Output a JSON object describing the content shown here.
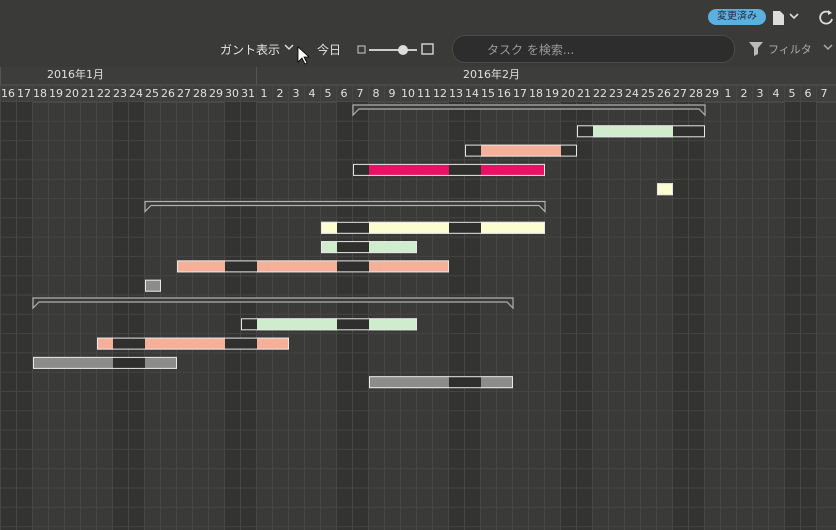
{
  "toolbar": {
    "status_badge": "変更済み",
    "view_menu": "ガント表示",
    "today_button": "今日",
    "search_placeholder": "タスク を検索...",
    "filter_button": "フィルタ"
  },
  "timeline": {
    "months": [
      {
        "label": "2016年1月",
        "from": 0
      },
      {
        "label": "2016年2月",
        "from": 16
      }
    ],
    "days": [
      "16",
      "17",
      "18",
      "19",
      "20",
      "21",
      "22",
      "23",
      "24",
      "25",
      "26",
      "27",
      "28",
      "29",
      "30",
      "31",
      "1",
      "2",
      "3",
      "4",
      "5",
      "6",
      "7",
      "8",
      "9",
      "10",
      "11",
      "12",
      "13",
      "14",
      "15",
      "16",
      "17",
      "18",
      "19",
      "20",
      "21",
      "22",
      "23",
      "24",
      "25",
      "26",
      "27",
      "28",
      "29",
      "1",
      "2",
      "3",
      "4",
      "5",
      "6",
      "7"
    ],
    "tasks": [
      {
        "kind": "summary",
        "from": 22,
        "to": 43
      },
      {
        "kind": "task",
        "from": 36,
        "to": 43,
        "color": "#cfeccd"
      },
      {
        "kind": "task",
        "from": 29,
        "to": 35,
        "color": "#f7b098"
      },
      {
        "kind": "task",
        "from": 22,
        "to": 33,
        "color": "#ec0f63"
      },
      {
        "kind": "task",
        "from": 41,
        "to": 41,
        "color": "#fdfdd2"
      },
      {
        "kind": "summary",
        "from": 9,
        "to": 33
      },
      {
        "kind": "task",
        "from": 20,
        "to": 33,
        "color": "#fdfdd2"
      },
      {
        "kind": "task",
        "from": 20,
        "to": 25,
        "color": "#cfeccd"
      },
      {
        "kind": "task",
        "from": 11,
        "to": 27,
        "color": "#f7b098"
      },
      {
        "kind": "task",
        "from": 9,
        "to": 9,
        "color": "#8c8c8c"
      },
      {
        "kind": "summary",
        "from": 2,
        "to": 31
      },
      {
        "kind": "task",
        "from": 15,
        "to": 25,
        "color": "#cfeccd"
      },
      {
        "kind": "task",
        "from": 6,
        "to": 17,
        "color": "#f7b098"
      },
      {
        "kind": "task",
        "from": 2,
        "to": 10,
        "color": "#8c8c8c"
      },
      {
        "kind": "task",
        "from": 23,
        "to": 31,
        "color": "#8c8c8c"
      }
    ]
  }
}
